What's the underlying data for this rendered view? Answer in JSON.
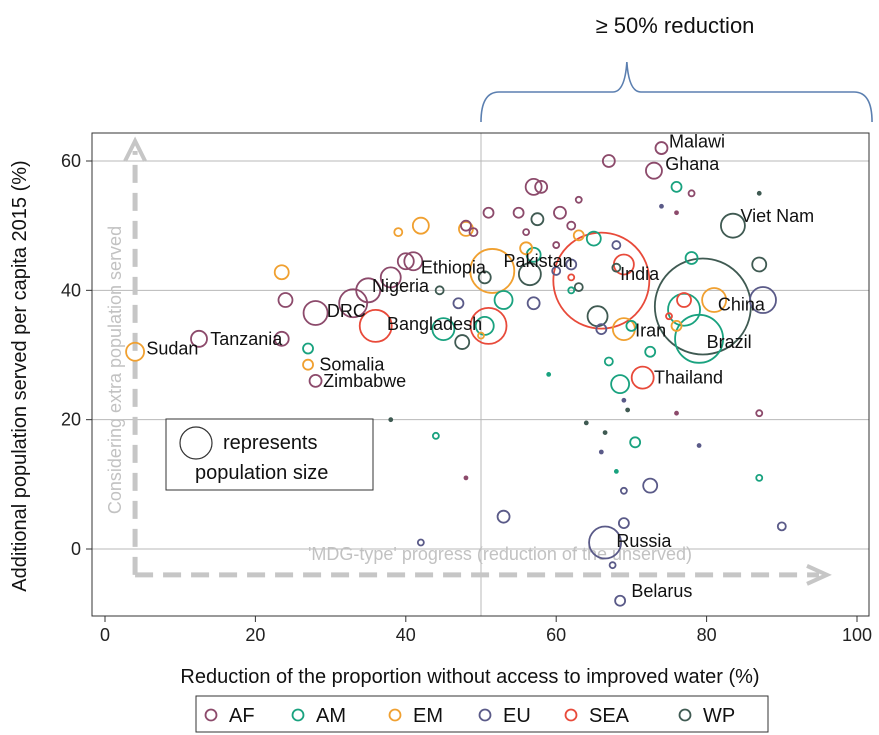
{
  "chart_data": {
    "type": "scatter",
    "title": "",
    "top_annotation": "≥ 50% reduction",
    "xlabel": "Reduction of the proportion without access to improved water (%)",
    "ylabel": "Additional population served per capita 2015 (%)",
    "xlim": [
      -2,
      102
    ],
    "ylim": [
      -10,
      64
    ],
    "xticks": [
      0,
      20,
      40,
      60,
      80,
      100
    ],
    "yticks": [
      0,
      20,
      40,
      60
    ],
    "grid": "horizontal",
    "reference_line_x": 50,
    "bracket_range": [
      50,
      102
    ],
    "arrow_y_label": "Considering extra population served",
    "arrow_x_label": "'MDG-type' progress (reduction of      the unserved)",
    "size_legend": "represents population size",
    "size_legend_line1": "represents",
    "size_legend_line2": "population size",
    "legend_position": "bottom",
    "colors": {
      "AF": "#8c4a6b",
      "AM": "#19a27f",
      "EM": "#f0a030",
      "EU": "#5a5a88",
      "SEA": "#e84a3a",
      "WP": "#3f5a52"
    },
    "series": [
      {
        "name": "AF",
        "points": [
          {
            "x": 67,
            "y": 60,
            "size": 6
          },
          {
            "x": 74,
            "y": 62,
            "size": 6
          },
          {
            "x": 73,
            "y": 58.5,
            "size": 8
          },
          {
            "x": 57,
            "y": 56,
            "size": 8
          },
          {
            "x": 58,
            "y": 56,
            "size": 6
          },
          {
            "x": 51,
            "y": 52,
            "size": 5
          },
          {
            "x": 55,
            "y": 52,
            "size": 5
          },
          {
            "x": 60.5,
            "y": 52,
            "size": 6
          },
          {
            "x": 48,
            "y": 50,
            "size": 5
          },
          {
            "x": 40,
            "y": 44.5,
            "size": 8
          },
          {
            "x": 41,
            "y": 44.5,
            "size": 9
          },
          {
            "x": 38,
            "y": 42,
            "size": 10
          },
          {
            "x": 35,
            "y": 40,
            "size": 12
          },
          {
            "x": 33,
            "y": 38,
            "size": 14
          },
          {
            "x": 28,
            "y": 36.5,
            "size": 12
          },
          {
            "x": 24,
            "y": 38.5,
            "size": 7
          },
          {
            "x": 23.5,
            "y": 32.5,
            "size": 7
          },
          {
            "x": 12.5,
            "y": 32.5,
            "size": 8
          },
          {
            "x": 28,
            "y": 26,
            "size": 6
          },
          {
            "x": 63,
            "y": 54,
            "size": 3
          },
          {
            "x": 62,
            "y": 50,
            "size": 4
          },
          {
            "x": 49,
            "y": 49,
            "size": 4
          },
          {
            "x": 56,
            "y": 49,
            "size": 3
          },
          {
            "x": 60,
            "y": 47,
            "size": 3
          },
          {
            "x": 87,
            "y": 21,
            "size": 3
          },
          {
            "x": 76,
            "y": 21,
            "size": 2
          },
          {
            "x": 78,
            "y": 55,
            "size": 3
          },
          {
            "x": 76,
            "y": 52,
            "size": 2
          },
          {
            "x": 48,
            "y": 11,
            "size": 2
          }
        ]
      },
      {
        "name": "AM",
        "points": [
          {
            "x": 76,
            "y": 56,
            "size": 5
          },
          {
            "x": 78,
            "y": 45,
            "size": 6
          },
          {
            "x": 57,
            "y": 45.5,
            "size": 7
          },
          {
            "x": 65,
            "y": 48,
            "size": 7
          },
          {
            "x": 53,
            "y": 38.5,
            "size": 9
          },
          {
            "x": 45,
            "y": 34,
            "size": 11
          },
          {
            "x": 50.5,
            "y": 34.5,
            "size": 9
          },
          {
            "x": 70,
            "y": 34.5,
            "size": 5
          },
          {
            "x": 72.5,
            "y": 30.5,
            "size": 5
          },
          {
            "x": 77,
            "y": 37,
            "size": 16
          },
          {
            "x": 79,
            "y": 32.5,
            "size": 24
          },
          {
            "x": 68.5,
            "y": 25.5,
            "size": 9
          },
          {
            "x": 67,
            "y": 29,
            "size": 4
          },
          {
            "x": 70.5,
            "y": 16.5,
            "size": 5
          },
          {
            "x": 44,
            "y": 17.5,
            "size": 3
          },
          {
            "x": 27,
            "y": 31,
            "size": 5
          },
          {
            "x": 87,
            "y": 11,
            "size": 3
          },
          {
            "x": 59,
            "y": 27,
            "size": 2
          },
          {
            "x": 68,
            "y": 12,
            "size": 2
          },
          {
            "x": 62,
            "y": 40,
            "size": 3
          }
        ]
      },
      {
        "name": "EM",
        "points": [
          {
            "x": 42,
            "y": 50,
            "size": 8
          },
          {
            "x": 39,
            "y": 49,
            "size": 4
          },
          {
            "x": 48,
            "y": 49.5,
            "size": 7
          },
          {
            "x": 51.5,
            "y": 43,
            "size": 22
          },
          {
            "x": 56,
            "y": 46.5,
            "size": 6
          },
          {
            "x": 63,
            "y": 48.5,
            "size": 5
          },
          {
            "x": 23.5,
            "y": 42.8,
            "size": 7
          },
          {
            "x": 4,
            "y": 30.5,
            "size": 9
          },
          {
            "x": 27,
            "y": 28.5,
            "size": 5
          },
          {
            "x": 69,
            "y": 34,
            "size": 11
          },
          {
            "x": 81,
            "y": 38.5,
            "size": 12
          },
          {
            "x": 76,
            "y": 34.5,
            "size": 5
          },
          {
            "x": 50,
            "y": 33,
            "size": 3
          }
        ]
      },
      {
        "name": "EU",
        "points": [
          {
            "x": 47,
            "y": 38,
            "size": 5
          },
          {
            "x": 57,
            "y": 38,
            "size": 6
          },
          {
            "x": 62,
            "y": 44,
            "size": 5
          },
          {
            "x": 68,
            "y": 47,
            "size": 4
          },
          {
            "x": 60,
            "y": 43,
            "size": 4
          },
          {
            "x": 66,
            "y": 34,
            "size": 5
          },
          {
            "x": 87.5,
            "y": 38.5,
            "size": 13
          },
          {
            "x": 72.5,
            "y": 9.8,
            "size": 7
          },
          {
            "x": 53,
            "y": 5,
            "size": 6
          },
          {
            "x": 66.5,
            "y": 1,
            "size": 16
          },
          {
            "x": 68.5,
            "y": -8,
            "size": 5
          },
          {
            "x": 90,
            "y": 3.5,
            "size": 4
          },
          {
            "x": 42,
            "y": 1,
            "size": 3
          },
          {
            "x": 69,
            "y": 4,
            "size": 5
          },
          {
            "x": 67.5,
            "y": -2.5,
            "size": 3
          },
          {
            "x": 69,
            "y": 9,
            "size": 3
          },
          {
            "x": 79,
            "y": 16,
            "size": 2
          },
          {
            "x": 69,
            "y": 23,
            "size": 2
          },
          {
            "x": 66,
            "y": 15,
            "size": 2
          },
          {
            "x": 74,
            "y": 53,
            "size": 2
          }
        ]
      },
      {
        "name": "SEA",
        "points": [
          {
            "x": 66,
            "y": 41.5,
            "size": 48
          },
          {
            "x": 69,
            "y": 44,
            "size": 10
          },
          {
            "x": 36,
            "y": 34.5,
            "size": 16
          },
          {
            "x": 51,
            "y": 34.5,
            "size": 18
          },
          {
            "x": 71.5,
            "y": 26.5,
            "size": 11
          },
          {
            "x": 77,
            "y": 38.5,
            "size": 7
          },
          {
            "x": 62,
            "y": 42,
            "size": 3
          },
          {
            "x": 75,
            "y": 36,
            "size": 3
          }
        ]
      },
      {
        "name": "WP",
        "points": [
          {
            "x": 79.5,
            "y": 37.5,
            "size": 48
          },
          {
            "x": 83.5,
            "y": 50,
            "size": 12
          },
          {
            "x": 87,
            "y": 44,
            "size": 7
          },
          {
            "x": 56.5,
            "y": 42.5,
            "size": 11
          },
          {
            "x": 57.5,
            "y": 51,
            "size": 6
          },
          {
            "x": 65.5,
            "y": 36,
            "size": 10
          },
          {
            "x": 47.5,
            "y": 32,
            "size": 7
          },
          {
            "x": 50.5,
            "y": 42,
            "size": 6
          },
          {
            "x": 44.5,
            "y": 40,
            "size": 4
          },
          {
            "x": 63,
            "y": 40.5,
            "size": 4
          },
          {
            "x": 68,
            "y": 43.5,
            "size": 4
          },
          {
            "x": 69.5,
            "y": 21.5,
            "size": 2
          },
          {
            "x": 64,
            "y": 19.5,
            "size": 2
          },
          {
            "x": 87,
            "y": 55,
            "size": 2
          },
          {
            "x": 66.5,
            "y": 18,
            "size": 2
          },
          {
            "x": 38,
            "y": 20,
            "size": 2
          }
        ]
      }
    ],
    "labels": [
      {
        "text": "Malawi",
        "x": 75,
        "y": 63
      },
      {
        "text": "Ghana",
        "x": 74.5,
        "y": 59.5
      },
      {
        "text": "Viet Nam",
        "x": 84.5,
        "y": 51.5
      },
      {
        "text": "Pakistan",
        "x": 53,
        "y": 44.5
      },
      {
        "text": "India",
        "x": 68.5,
        "y": 42.5
      },
      {
        "text": "Ethiopia",
        "x": 42,
        "y": 43.5
      },
      {
        "text": "Nigeria",
        "x": 35.5,
        "y": 40.7
      },
      {
        "text": "China",
        "x": 81.5,
        "y": 37.8
      },
      {
        "text": "DRC",
        "x": 29.5,
        "y": 36.8
      },
      {
        "text": "Bangladesh",
        "x": 37.5,
        "y": 34.8
      },
      {
        "text": "Iran",
        "x": 70.5,
        "y": 33.8
      },
      {
        "text": "Brazil",
        "x": 80,
        "y": 32
      },
      {
        "text": "Tanzania",
        "x": 14,
        "y": 32.5
      },
      {
        "text": "Sudan",
        "x": 5.5,
        "y": 31
      },
      {
        "text": "Somalia",
        "x": 28.5,
        "y": 28.5
      },
      {
        "text": "Thailand",
        "x": 73,
        "y": 26.5
      },
      {
        "text": "Zimbabwe",
        "x": 29,
        "y": 26
      },
      {
        "text": "Russia",
        "x": 68,
        "y": 1.2
      },
      {
        "text": "Belarus",
        "x": 70,
        "y": -6.5
      }
    ]
  }
}
